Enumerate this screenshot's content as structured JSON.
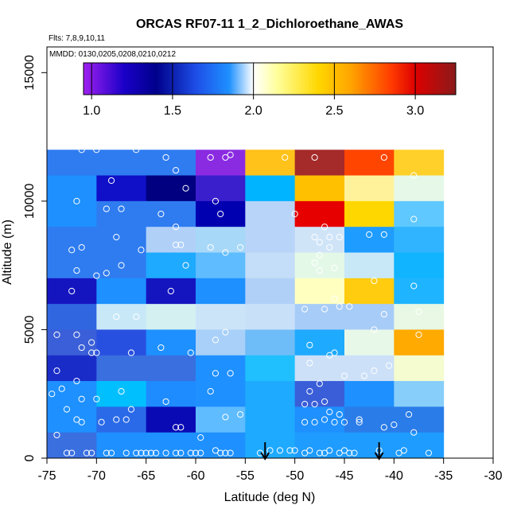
{
  "chart_data": {
    "type": "heatmap",
    "title": "ORCAS RF07-11 1_2_Dichloroethane_AWAS",
    "flights_label": "Flts: 7,8,9,10,11",
    "dates_label": "MMDD: 0130,0205,0208,0210,0212",
    "xlabel": "Latitude (deg N)",
    "ylabel": "Altitude (m)",
    "xlim": [
      -75,
      -30
    ],
    "ylim": [
      0,
      16000
    ],
    "x_ticks": [
      -75,
      -70,
      -65,
      -60,
      -55,
      -50,
      -45,
      -40,
      -35,
      -30
    ],
    "x_tick_labels": [
      "-75",
      "-70",
      "-65",
      "-60",
      "-55",
      "-50",
      "-45",
      "-40",
      "-35",
      "-30"
    ],
    "y_ticks": [
      0,
      5000,
      10000,
      15000
    ],
    "y_tick_labels": [
      "0",
      "5000",
      "10000",
      "15000"
    ],
    "colorbar": {
      "range": [
        0.95,
        3.25
      ],
      "ticks": [
        1.0,
        1.5,
        2.0,
        2.5,
        3.0
      ],
      "tick_labels": [
        "1.0",
        "1.5",
        "2.0",
        "2.5",
        "3.0"
      ],
      "stops": [
        [
          0.95,
          "#a020f0"
        ],
        [
          1.2,
          "#1a00c8"
        ],
        [
          1.4,
          "#00008b"
        ],
        [
          1.65,
          "#1e4fe8"
        ],
        [
          1.85,
          "#1e90ff"
        ],
        [
          2.0,
          "#ffffff"
        ],
        [
          2.15,
          "#ffff99"
        ],
        [
          2.4,
          "#ffd700"
        ],
        [
          2.6,
          "#ffa500"
        ],
        [
          2.85,
          "#ff3c00"
        ],
        [
          3.0,
          "#dd0000"
        ],
        [
          3.25,
          "#8b1a1a"
        ]
      ]
    },
    "cell_lat_edges": [
      -75,
      -70,
      -65,
      -60,
      -55,
      -50,
      -45,
      -40,
      -35
    ],
    "cell_alt_edges": [
      0,
      1000,
      2000,
      3000,
      4000,
      5000,
      6000,
      7000,
      8000,
      9000,
      10000,
      11000,
      12000
    ],
    "cell_rows_from_top": [
      [
        "#2f7cf0",
        "#2f7cf0",
        "#2f7cf0",
        "#8a2be2",
        "#ffc21a",
        "#a52a2a",
        "#ff4500",
        "#ffd02a"
      ],
      [
        "#1e90ff",
        "#1010c8",
        "#000080",
        "#3a1fcc",
        "#00b4ff",
        "#ffc000",
        "#fff29a",
        "#e6f8e8"
      ],
      [
        "#1e90ff",
        "#2f7cf0",
        "#2f7cf0",
        "#0000b0",
        "#b8d4f8",
        "#e60000",
        "#ffd700",
        "#5ec8ff"
      ],
      [
        "#2f7cf0",
        "#2f7cf0",
        "#b0d0f8",
        "#a8d8f8",
        "#b8d4f8",
        "#d0e4f8",
        "#1e9cff",
        "#30b4ff"
      ],
      [
        "#2f7cf0",
        "#2f7cf0",
        "#1eaaff",
        "#5ebcff",
        "#c4ddf8",
        "#e4f8e8",
        "#c8e8f8",
        "#10b4ff"
      ],
      [
        "#1515c0",
        "#1e90ff",
        "#1515c0",
        "#1e90ff",
        "#b0d0f8",
        "#ffffc0",
        "#ffcc10",
        "#1eb4ff"
      ],
      [
        "#3066e0",
        "#c8e8f8",
        "#d4f0f0",
        "#cce4f8",
        "#c8e0f8",
        "#a8ccf8",
        "#a8ccf8",
        "#e8f8e4"
      ],
      [
        "#3a5fd8",
        "#2850e0",
        "#1e90ff",
        "#a8d0f8",
        "#6ebcf8",
        "#1eaaff",
        "#e8f8e8",
        "#ffaa00"
      ],
      [
        "#1a2cc8",
        "#3a6fe0",
        "#3a6fe0",
        "#1e90ff",
        "#20c0ff",
        "#cce0f8",
        "#cce0f8",
        "#f4fcd0"
      ],
      [
        "#1e90ff",
        "#00bfff",
        "#1e8cff",
        "#1e90ff",
        "#1eaaff",
        "#3a5ed8",
        "#1e90ff",
        "#87cefa"
      ],
      [
        "#1e90ff",
        "#2a6ae8",
        "#0a0ab4",
        "#5ebcff",
        "#1eaaff",
        "#1e90ff",
        "#2a7ce8",
        "#2a7ce8"
      ],
      [
        "#3a6fe0",
        "#1e90ff",
        "#1e90ff",
        "#1e90ff",
        "#1eaaff",
        "#1e9cff",
        "#1e9cff",
        "#1e9cff"
      ]
    ],
    "samples": [
      [
        -71.5,
        12000
      ],
      [
        -70,
        12000
      ],
      [
        -66,
        12000
      ],
      [
        -63,
        11700
      ],
      [
        -62,
        11200
      ],
      [
        -58.5,
        11700
      ],
      [
        -57,
        11700
      ],
      [
        -56.5,
        11800
      ],
      [
        -51,
        11700
      ],
      [
        -48,
        11700
      ],
      [
        -41,
        11700
      ],
      [
        -38,
        11000
      ],
      [
        -68.5,
        10800
      ],
      [
        -72,
        10000
      ],
      [
        -61,
        10500
      ],
      [
        -58,
        10000
      ],
      [
        -69,
        9700
      ],
      [
        -67.5,
        9700
      ],
      [
        -63.5,
        9500
      ],
      [
        -62,
        9000
      ],
      [
        -57.5,
        9500
      ],
      [
        -50,
        9500
      ],
      [
        -47,
        9000
      ],
      [
        -38,
        9300
      ],
      [
        -68,
        8600
      ],
      [
        -71.5,
        8200
      ],
      [
        -72.5,
        8100
      ],
      [
        -65.5,
        8100
      ],
      [
        -62,
        8300
      ],
      [
        -61.5,
        8300
      ],
      [
        -57,
        8000
      ],
      [
        -58.5,
        8200
      ],
      [
        -55.5,
        8200
      ],
      [
        -48,
        8600
      ],
      [
        -46.5,
        8600
      ],
      [
        -45.5,
        8600
      ],
      [
        -42.5,
        8700
      ],
      [
        -41,
        8700
      ],
      [
        -47.5,
        8400
      ],
      [
        -46.5,
        8200
      ],
      [
        -47.5,
        7900
      ],
      [
        -72,
        7300
      ],
      [
        -70,
        7100
      ],
      [
        -69,
        7200
      ],
      [
        -67.5,
        7500
      ],
      [
        -61,
        7500
      ],
      [
        -48,
        7600
      ],
      [
        -46,
        7400
      ],
      [
        -47.5,
        7300
      ],
      [
        -42,
        6900
      ],
      [
        -38,
        6700
      ],
      [
        -72.5,
        6500
      ],
      [
        -62.5,
        6500
      ],
      [
        -46,
        6200
      ],
      [
        -49,
        5800
      ],
      [
        -47,
        5800
      ],
      [
        -45.5,
        5900
      ],
      [
        -44.5,
        5900
      ],
      [
        -68,
        5500
      ],
      [
        -66,
        5500
      ],
      [
        -41,
        5600
      ],
      [
        -37.5,
        5700
      ],
      [
        -74,
        4800
      ],
      [
        -72,
        4800
      ],
      [
        -70.5,
        4500
      ],
      [
        -42,
        5000
      ],
      [
        -57,
        4900
      ],
      [
        -37.5,
        4800
      ],
      [
        -71.5,
        4300
      ],
      [
        -70,
        4100
      ],
      [
        -70.5,
        4100
      ],
      [
        -66.5,
        4100
      ],
      [
        -63.5,
        4300
      ],
      [
        -60.5,
        4100
      ],
      [
        -58,
        4600
      ],
      [
        -48.5,
        4400
      ],
      [
        -46,
        4100
      ],
      [
        -46.5,
        4000
      ],
      [
        -48.5,
        3700
      ],
      [
        -45,
        3200
      ],
      [
        -58,
        3300
      ],
      [
        -56.5,
        3300
      ],
      [
        -74,
        3400
      ],
      [
        -72,
        3000
      ],
      [
        -42,
        3400
      ],
      [
        -40.5,
        3600
      ],
      [
        -43,
        3200
      ],
      [
        -47.5,
        2900
      ],
      [
        -74.5,
        2500
      ],
      [
        -73.5,
        2700
      ],
      [
        -67.5,
        2600
      ],
      [
        -58.5,
        2600
      ],
      [
        -48.5,
        2600
      ],
      [
        -71.5,
        2300
      ],
      [
        -70,
        2300
      ],
      [
        -63,
        2200
      ],
      [
        -49,
        2100
      ],
      [
        -47,
        2200
      ],
      [
        -48,
        2100
      ],
      [
        -46.5,
        1800
      ],
      [
        -45.5,
        1700
      ],
      [
        -43.5,
        1500
      ],
      [
        -73,
        1900
      ],
      [
        -66.5,
        1900
      ],
      [
        -38.5,
        1700
      ],
      [
        -72,
        1500
      ],
      [
        -71.5,
        1400
      ],
      [
        -69.5,
        1400
      ],
      [
        -68,
        1500
      ],
      [
        -67,
        1500
      ],
      [
        -62,
        1200
      ],
      [
        -61.5,
        1200
      ],
      [
        -57,
        1600
      ],
      [
        -55.5,
        1700
      ],
      [
        -47,
        1500
      ],
      [
        -46,
        1400
      ],
      [
        -45,
        1400
      ],
      [
        -43.5,
        1400
      ],
      [
        -41,
        1200
      ],
      [
        -40,
        1300
      ],
      [
        -49,
        1400
      ],
      [
        -48,
        1400
      ],
      [
        -74,
        900
      ],
      [
        -59.5,
        800
      ],
      [
        -38,
        1000
      ],
      [
        -73,
        200
      ],
      [
        -72.5,
        200
      ],
      [
        -71,
        200
      ],
      [
        -70.5,
        200
      ],
      [
        -69,
        200
      ],
      [
        -68.5,
        200
      ],
      [
        -67,
        200
      ],
      [
        -66,
        200
      ],
      [
        -65.5,
        200
      ],
      [
        -64.5,
        200
      ],
      [
        -64,
        200
      ],
      [
        -63,
        200
      ],
      [
        -62,
        200
      ],
      [
        -61.5,
        200
      ],
      [
        -60.5,
        200
      ],
      [
        -59.5,
        200
      ],
      [
        -57,
        200
      ],
      [
        -56.5,
        200
      ],
      [
        -53.5,
        200
      ],
      [
        -52.5,
        300
      ],
      [
        -51.5,
        300
      ],
      [
        -50.5,
        300
      ],
      [
        -50,
        300
      ],
      [
        -49,
        200
      ],
      [
        -48.5,
        300
      ],
      [
        -47.5,
        200
      ],
      [
        -47,
        200
      ],
      [
        -46.5,
        300
      ],
      [
        -45.5,
        200
      ],
      [
        -45,
        300
      ],
      [
        -44.5,
        200
      ],
      [
        -44,
        200
      ],
      [
        -41.5,
        300
      ],
      [
        -39.5,
        200
      ],
      [
        -39,
        300
      ],
      [
        -36.5,
        200
      ],
      [
        -57.5,
        200
      ],
      [
        -65,
        200
      ],
      [
        -58,
        300
      ],
      [
        -60,
        200
      ]
    ],
    "arrow_markers_lat": [
      -53,
      -41.5
    ]
  }
}
